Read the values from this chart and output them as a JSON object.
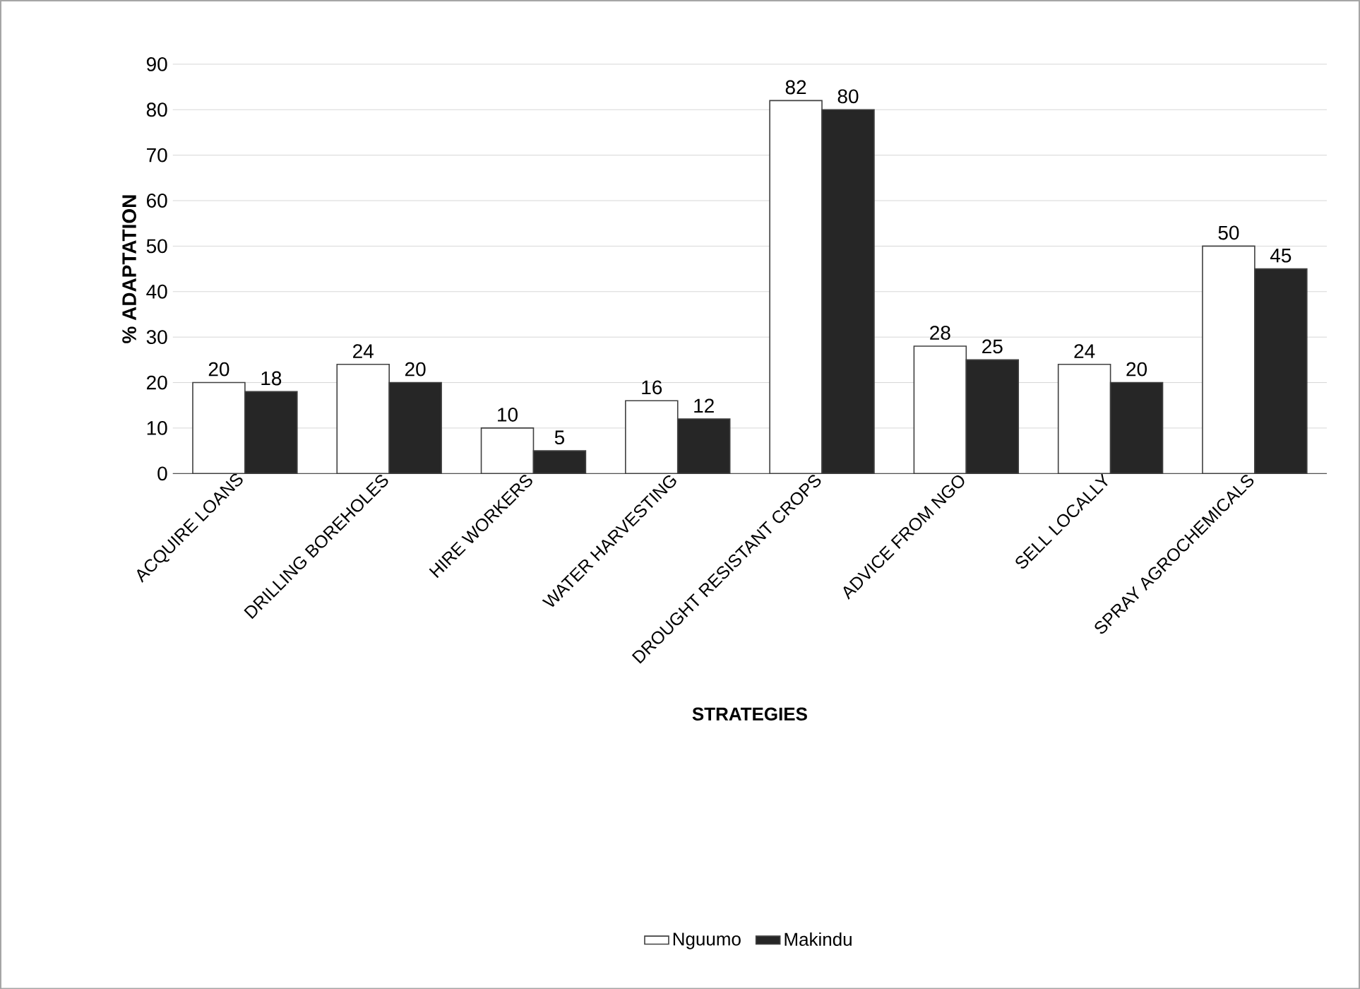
{
  "chart_data": {
    "type": "bar",
    "xlabel": "STRATEGIES",
    "ylabel": "% ADAPTATION",
    "categories": [
      "ACQUIRE LOANS",
      "DRILLING BOREHOLES",
      "HIRE WORKERS",
      "WATER HARVESTING",
      "DROUGHT RESISTANT CROPS",
      "ADVICE FROM NGO",
      "SELL LOCALLY",
      "SPRAY AGROCHEMICALS"
    ],
    "series": [
      {
        "name": "Nguumo",
        "color": "#ffffff",
        "values": [
          20,
          24,
          10,
          16,
          82,
          28,
          24,
          50
        ]
      },
      {
        "name": "Makindu",
        "color": "#262626",
        "values": [
          18,
          20,
          5,
          12,
          80,
          25,
          20,
          45
        ]
      }
    ],
    "ylim": [
      0,
      90
    ],
    "yticks": [
      0,
      10,
      20,
      30,
      40,
      50,
      60,
      70,
      80,
      90
    ],
    "grid": "y",
    "legend": "bottom",
    "data_labels": true
  }
}
